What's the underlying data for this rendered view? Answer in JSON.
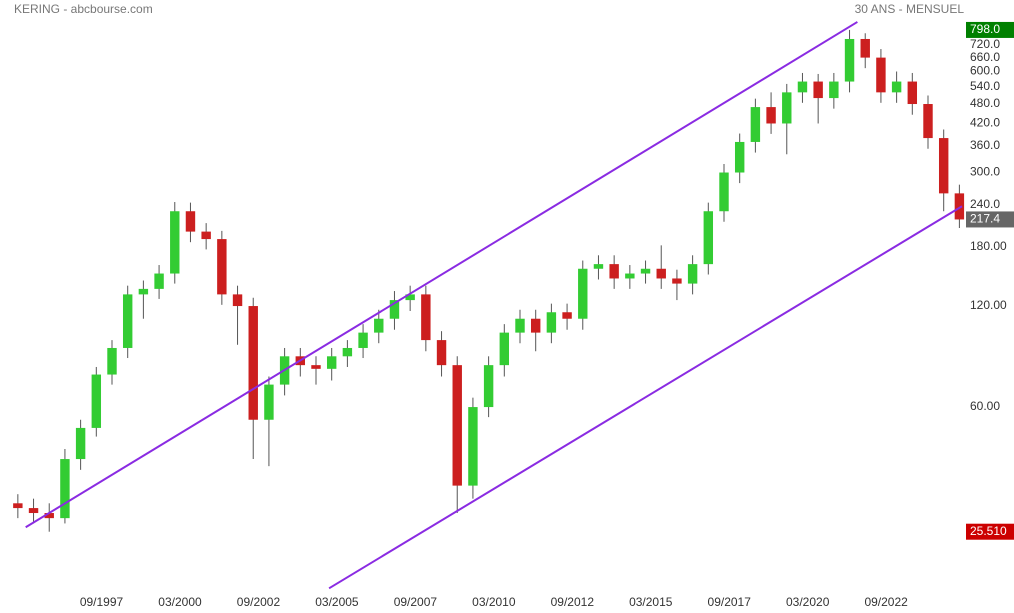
{
  "chart_data": {
    "type": "candlestick",
    "title": "KERING - abcbourse.com",
    "subtitle": "30 ANS - MENSUEL",
    "log_scale": true,
    "up_color": "#33cc33",
    "down_color": "#cc1f1f",
    "line_color": "#8a2be2",
    "xlim": [
      "10/1994",
      "02/2025"
    ],
    "xticks": [
      "09/1997",
      "03/2000",
      "09/2002",
      "03/2005",
      "09/2007",
      "03/2010",
      "09/2012",
      "03/2015",
      "09/2017",
      "03/2020",
      "09/2022"
    ],
    "ylim": [
      17.1,
      980
    ],
    "yticks": [
      {
        "value": 60,
        "label": "60.00"
      },
      {
        "value": 120,
        "label": "120.00"
      },
      {
        "value": 180,
        "label": "180.00"
      },
      {
        "value": 240,
        "label": "240.0"
      },
      {
        "value": 300,
        "label": "300.0"
      },
      {
        "value": 360,
        "label": "360.0"
      },
      {
        "value": 420,
        "label": "420.0"
      },
      {
        "value": 480,
        "label": "480.0"
      },
      {
        "value": 540,
        "label": "540.0"
      },
      {
        "value": 600,
        "label": "600.0"
      },
      {
        "value": 660,
        "label": "660.0"
      },
      {
        "value": 720,
        "label": "720.0"
      }
    ],
    "x": [
      "01/1995",
      "07/1995",
      "01/1996",
      "07/1996",
      "01/1997",
      "07/1997",
      "01/1998",
      "07/1998",
      "01/1999",
      "07/1999",
      "01/2000",
      "07/2000",
      "01/2001",
      "07/2001",
      "01/2002",
      "07/2002",
      "01/2003",
      "07/2003",
      "01/2004",
      "07/2004",
      "01/2005",
      "07/2005",
      "01/2006",
      "07/2006",
      "01/2007",
      "07/2007",
      "01/2008",
      "07/2008",
      "01/2009",
      "07/2009",
      "01/2010",
      "07/2010",
      "01/2011",
      "07/2011",
      "01/2012",
      "07/2012",
      "01/2013",
      "07/2013",
      "01/2014",
      "07/2014",
      "01/2015",
      "07/2015",
      "01/2016",
      "07/2016",
      "01/2017",
      "07/2017",
      "01/2018",
      "07/2018",
      "01/2019",
      "07/2019",
      "01/2020",
      "07/2020",
      "01/2021",
      "07/2021",
      "01/2022",
      "07/2022",
      "01/2023",
      "07/2023",
      "01/2024",
      "07/2024",
      "01/2025"
    ],
    "open": [
      31,
      30,
      29,
      28,
      42,
      52,
      75,
      90,
      130,
      135,
      150,
      230,
      200,
      190,
      130,
      120,
      55,
      70,
      85,
      80,
      78,
      85,
      90,
      100,
      110,
      125,
      130,
      95,
      80,
      35,
      60,
      80,
      100,
      110,
      100,
      115,
      110,
      155,
      160,
      145,
      150,
      155,
      145,
      140,
      160,
      230,
      300,
      370,
      470,
      420,
      520,
      560,
      500,
      560,
      750,
      660,
      520,
      560,
      480,
      380,
      260
    ],
    "high": [
      33,
      32,
      31,
      45,
      55,
      79,
      95,
      138,
      143,
      159,
      245,
      244,
      212,
      201,
      138,
      127,
      74,
      90,
      90,
      85,
      90,
      95,
      106,
      117,
      133,
      138,
      138,
      101,
      85,
      64,
      85,
      106,
      117,
      117,
      122,
      122,
      164,
      170,
      170,
      159,
      164,
      182,
      154,
      170,
      244,
      318,
      392,
      498,
      520,
      551,
      594,
      590,
      594,
      798,
      780,
      700,
      600,
      594,
      509,
      403,
      276
    ],
    "low": [
      28,
      27,
      25.51,
      27,
      39,
      49,
      70,
      84,
      110,
      126,
      140,
      186,
      177,
      121,
      92,
      42,
      40,
      65,
      74,
      70,
      72,
      79,
      84,
      93,
      102,
      116,
      88,
      74,
      29,
      32,
      56,
      74,
      93,
      88,
      93,
      102,
      102,
      144,
      135,
      135,
      140,
      135,
      125,
      130,
      149,
      214,
      279,
      344,
      391,
      340,
      484,
      420,
      465,
      520,
      614,
      484,
      484,
      446,
      353,
      230,
      205
    ],
    "close": [
      30,
      29,
      28,
      42,
      52,
      75,
      90,
      130,
      135,
      150,
      230,
      200,
      190,
      130,
      120,
      55,
      70,
      85,
      80,
      78,
      85,
      90,
      100,
      110,
      125,
      130,
      95,
      80,
      35,
      60,
      80,
      100,
      110,
      100,
      115,
      110,
      155,
      160,
      145,
      150,
      155,
      145,
      140,
      160,
      230,
      300,
      370,
      470,
      420,
      520,
      560,
      500,
      560,
      750,
      660,
      520,
      560,
      480,
      380,
      260,
      217.4
    ],
    "trendlines": [
      {
        "x": [
          "04/1995",
          "10/2021"
        ],
        "values": [
          26.3,
          843
        ]
      },
      {
        "x": [
          "12/2004",
          "02/2025"
        ],
        "values": [
          17.3,
          238
        ]
      }
    ],
    "markers": [
      {
        "value": 798.0,
        "label": "798.0",
        "color": "#008000"
      },
      {
        "value": 217.4,
        "label": "217.4",
        "color": "#666666"
      },
      {
        "value": 25.51,
        "label": "25.510",
        "color": "#cc0000"
      }
    ]
  }
}
